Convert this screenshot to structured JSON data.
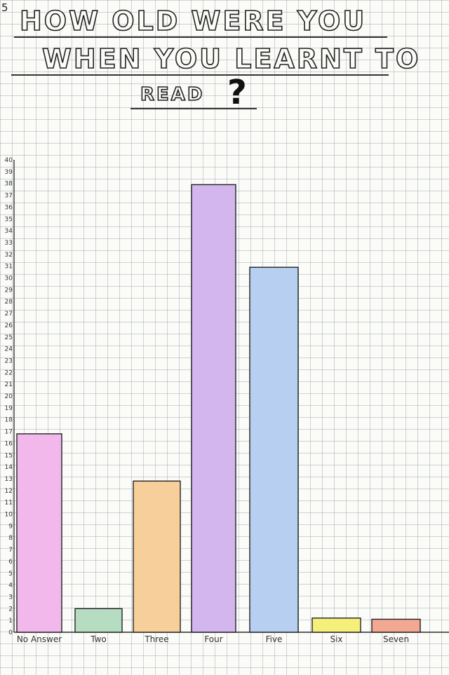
{
  "page_number": "5",
  "title": {
    "line1": "How Old Were You",
    "line2": "When You Learnt To",
    "line3": "Read",
    "mark": "?"
  },
  "chart_data": {
    "type": "bar",
    "title": "How Old Were You When You Learnt To Read?",
    "xlabel": "",
    "ylabel": "",
    "ylim": [
      0,
      40
    ],
    "yticks": [
      0,
      1,
      2,
      3,
      4,
      5,
      6,
      7,
      8,
      9,
      10,
      11,
      12,
      13,
      14,
      15,
      16,
      17,
      18,
      19,
      20,
      21,
      22,
      23,
      24,
      25,
      26,
      27,
      28,
      29,
      30,
      31,
      32,
      33,
      34,
      35,
      36,
      37,
      38,
      39,
      40
    ],
    "categories": [
      "No Answer",
      "Two",
      "Three",
      "Four",
      "Five",
      "Six",
      "Seven"
    ],
    "values": [
      16.8,
      2,
      12.8,
      37.9,
      30.9,
      1.2,
      1.1
    ],
    "colors": [
      "#f2b8ec",
      "#b6dcc2",
      "#f7cf9a",
      "#d3b6ee",
      "#b7cff0",
      "#f5f07a",
      "#f3a892"
    ],
    "grid": true
  }
}
